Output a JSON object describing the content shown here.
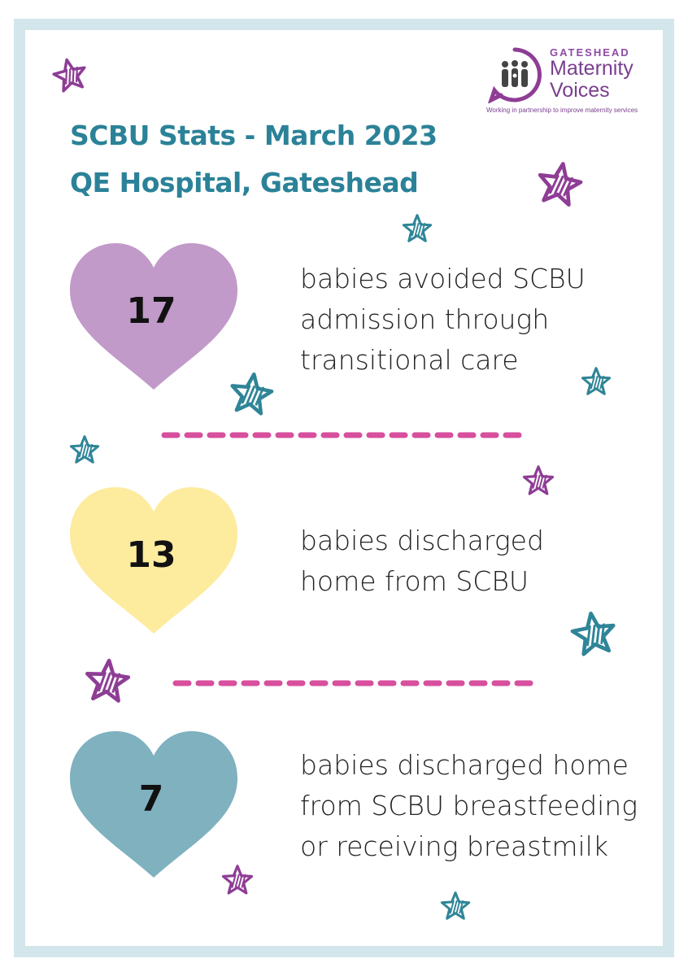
{
  "title": {
    "line1": "SCBU Stats - March 2023",
    "line2": "QE Hospital, Gateshead"
  },
  "logo": {
    "top_word": "GATESHEAD",
    "line1": "Maternity",
    "line2": "Voices",
    "tagline": "Working in partnership to improve maternity services"
  },
  "stats": [
    {
      "value": "17",
      "color": "#c19ac9",
      "lines": [
        "babies avoided SCBU",
        "admission through",
        "transitional care"
      ]
    },
    {
      "value": "13",
      "color": "#fdeb9e",
      "lines": [
        "babies discharged",
        "home from SCBU"
      ]
    },
    {
      "value": "7",
      "color": "#7fb1bf",
      "lines": [
        "babies discharged home",
        "from SCBU breastfeeding",
        "or receiving breastmilk"
      ]
    }
  ],
  "colors": {
    "title": "#2b8298",
    "frame": "#d3e6ec",
    "purple_star": "#8e3d95",
    "teal_star": "#2f8597",
    "dash": "#d74f9d"
  },
  "decorations": {
    "stars": "star-icon",
    "dividers": "dashed-divider"
  }
}
